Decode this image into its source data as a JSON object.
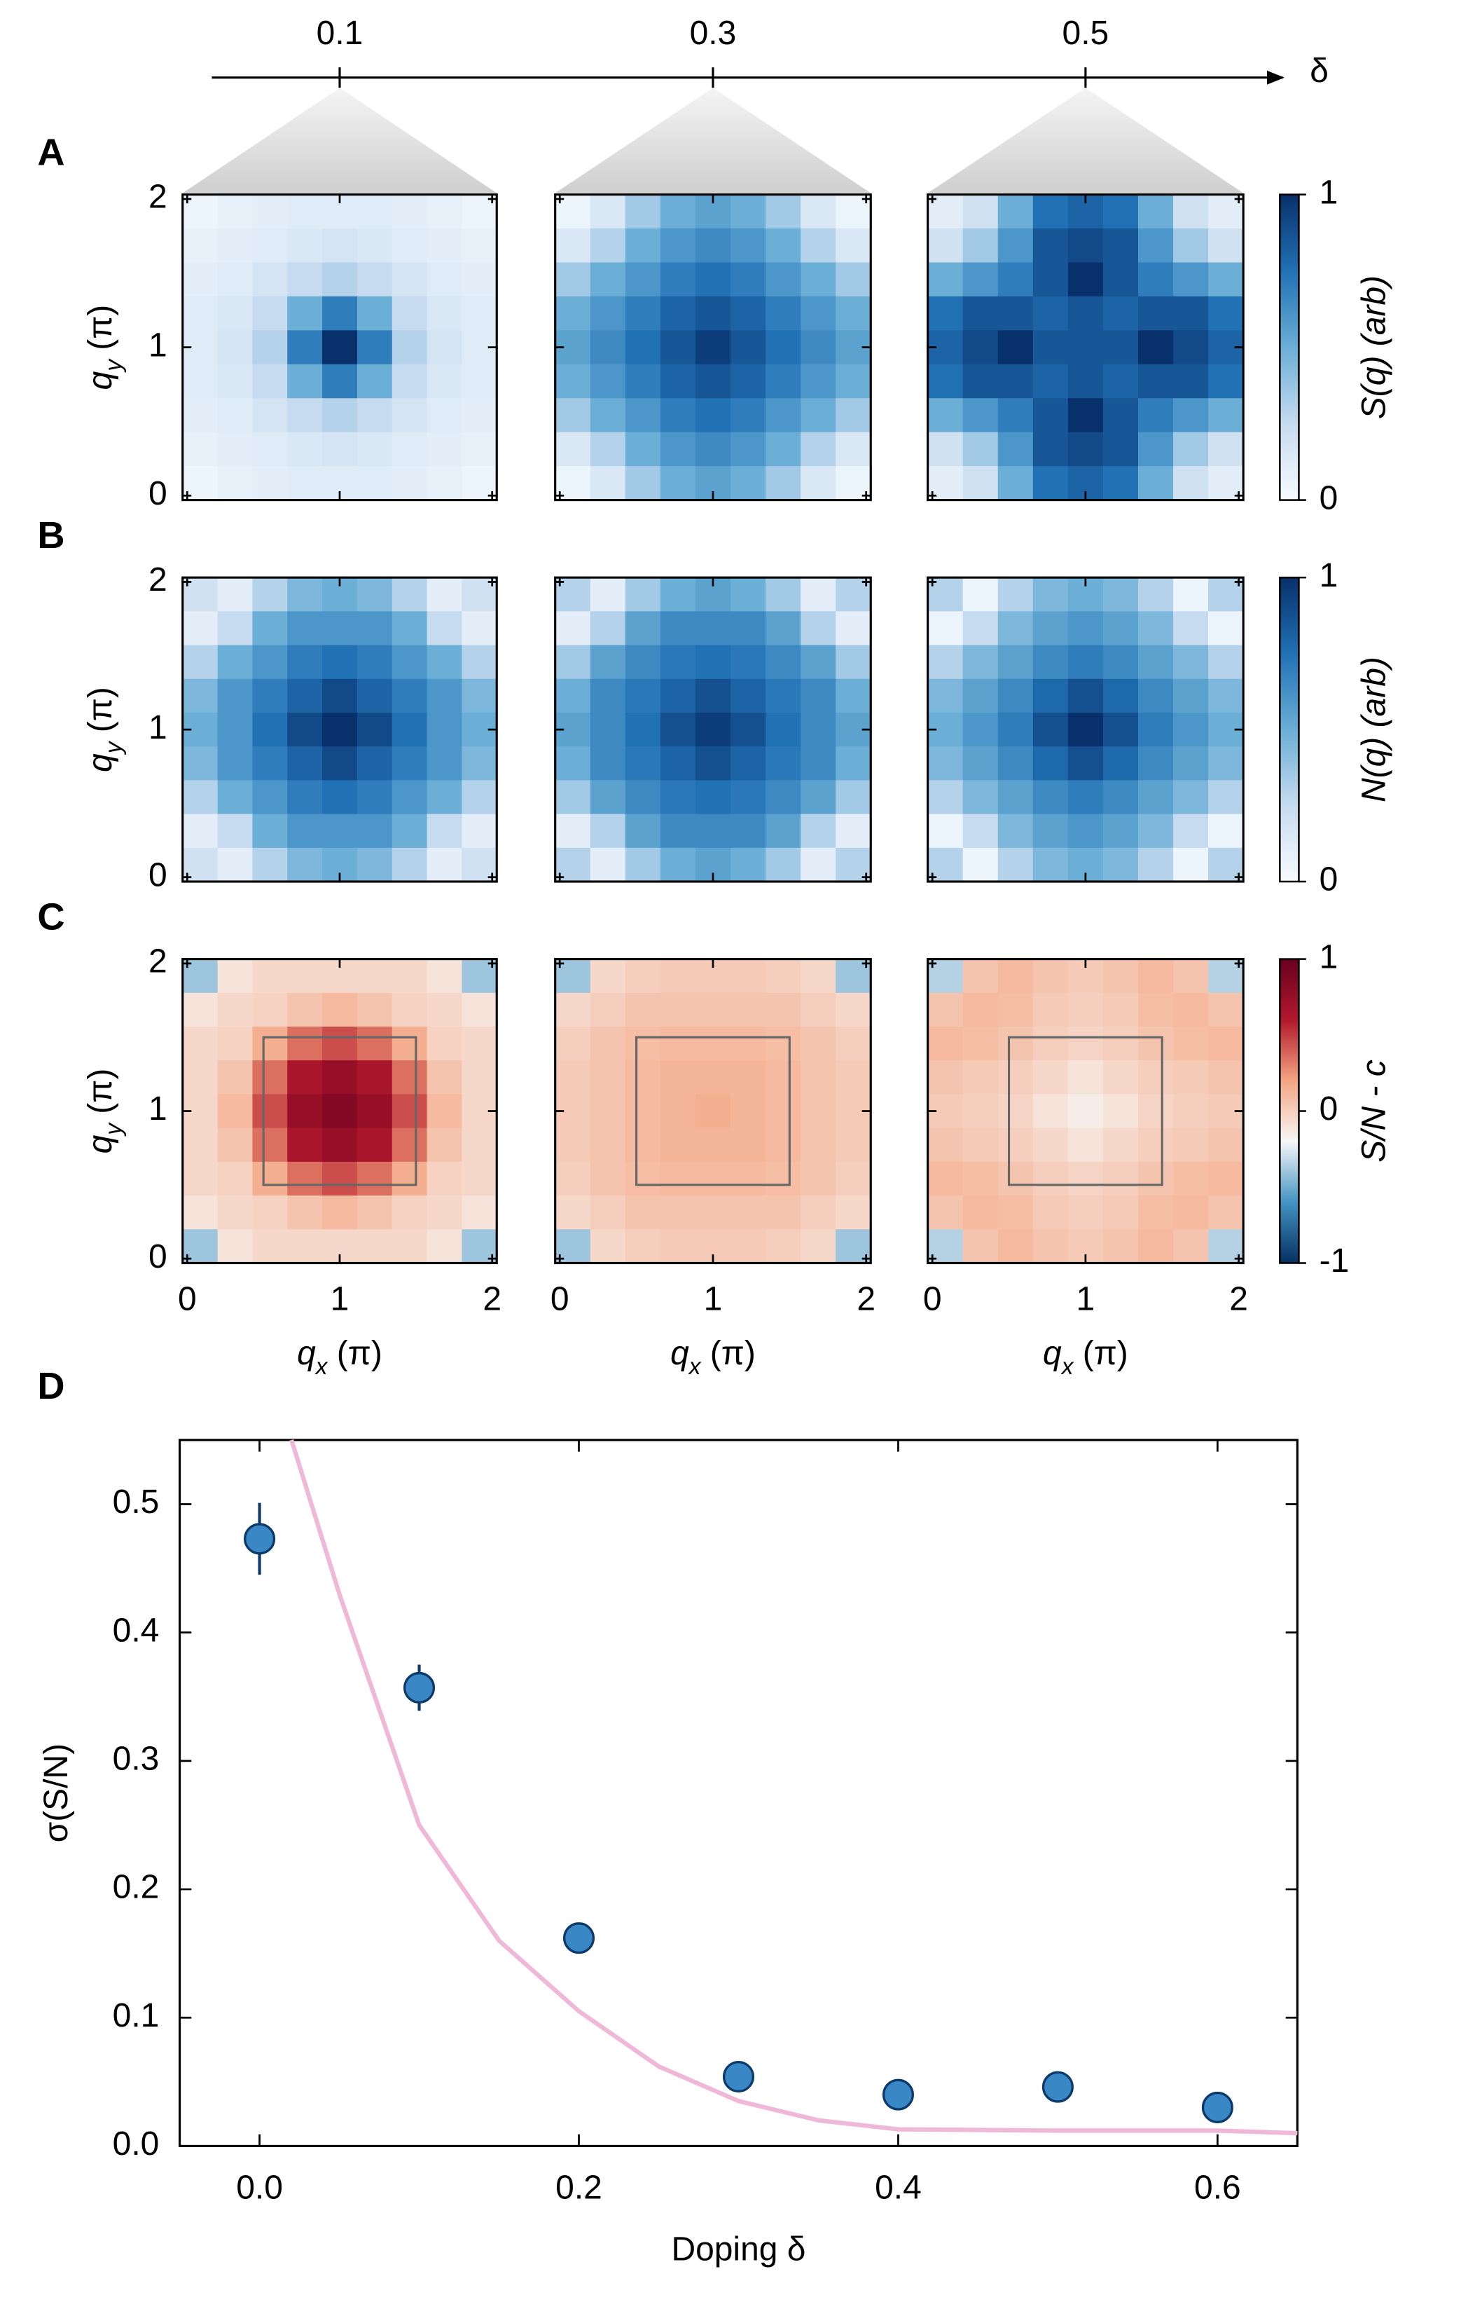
{
  "chart_data": [
    {
      "type": "heatmap",
      "label": "A",
      "doping": [
        0.1,
        0.3,
        0.5
      ],
      "doping_label": "δ",
      "ylabel": [
        "q",
        "y",
        " (π)"
      ],
      "xlim": [
        -0.03,
        2.03
      ],
      "ylim": [
        -0.03,
        2.03
      ],
      "xticks": [
        0,
        1,
        2
      ],
      "yticks": [
        0,
        1,
        2
      ],
      "clim": [
        0,
        1
      ],
      "cticks": [
        0,
        1
      ],
      "colorbar_label": "S(q) (arb)",
      "colormap": [
        "#f7fbff",
        "#c6dbef",
        "#6baed6",
        "#2171b5",
        "#08306b"
      ],
      "maps": [
        [
          [
            0.05,
            0.08,
            0.1,
            0.12,
            0.12,
            0.12,
            0.1,
            0.08,
            0.05
          ],
          [
            0.08,
            0.1,
            0.12,
            0.15,
            0.18,
            0.15,
            0.12,
            0.1,
            0.08
          ],
          [
            0.1,
            0.12,
            0.18,
            0.25,
            0.3,
            0.25,
            0.18,
            0.12,
            0.1
          ],
          [
            0.12,
            0.15,
            0.25,
            0.5,
            0.7,
            0.5,
            0.25,
            0.15,
            0.12
          ],
          [
            0.12,
            0.18,
            0.3,
            0.7,
            1,
            0.7,
            0.3,
            0.18,
            0.12
          ],
          [
            0.12,
            0.15,
            0.25,
            0.5,
            0.7,
            0.5,
            0.25,
            0.15,
            0.12
          ],
          [
            0.1,
            0.12,
            0.18,
            0.25,
            0.3,
            0.25,
            0.18,
            0.12,
            0.1
          ],
          [
            0.08,
            0.1,
            0.12,
            0.15,
            0.18,
            0.15,
            0.12,
            0.1,
            0.08
          ],
          [
            0.05,
            0.08,
            0.1,
            0.12,
            0.12,
            0.12,
            0.1,
            0.08,
            0.05
          ]
        ],
        [
          [
            0.05,
            0.15,
            0.35,
            0.5,
            0.55,
            0.5,
            0.35,
            0.15,
            0.05
          ],
          [
            0.15,
            0.3,
            0.5,
            0.6,
            0.65,
            0.6,
            0.5,
            0.3,
            0.15
          ],
          [
            0.35,
            0.5,
            0.6,
            0.7,
            0.75,
            0.7,
            0.6,
            0.5,
            0.35
          ],
          [
            0.5,
            0.6,
            0.7,
            0.8,
            0.85,
            0.8,
            0.7,
            0.6,
            0.5
          ],
          [
            0.55,
            0.65,
            0.75,
            0.85,
            0.95,
            0.85,
            0.75,
            0.65,
            0.55
          ],
          [
            0.5,
            0.6,
            0.7,
            0.8,
            0.85,
            0.8,
            0.7,
            0.6,
            0.5
          ],
          [
            0.35,
            0.5,
            0.6,
            0.7,
            0.75,
            0.7,
            0.6,
            0.5,
            0.35
          ],
          [
            0.15,
            0.3,
            0.5,
            0.6,
            0.65,
            0.6,
            0.5,
            0.3,
            0.15
          ],
          [
            0.05,
            0.15,
            0.35,
            0.5,
            0.55,
            0.5,
            0.35,
            0.15,
            0.05
          ]
        ],
        [
          [
            0.1,
            0.2,
            0.5,
            0.75,
            0.8,
            0.75,
            0.5,
            0.2,
            0.1
          ],
          [
            0.2,
            0.35,
            0.6,
            0.85,
            0.9,
            0.85,
            0.6,
            0.35,
            0.2
          ],
          [
            0.5,
            0.6,
            0.7,
            0.85,
            1,
            0.85,
            0.7,
            0.6,
            0.5
          ],
          [
            0.75,
            0.85,
            0.85,
            0.8,
            0.85,
            0.8,
            0.85,
            0.85,
            0.75
          ],
          [
            0.8,
            0.9,
            1,
            0.85,
            0.85,
            0.85,
            1,
            0.9,
            0.8
          ],
          [
            0.75,
            0.85,
            0.85,
            0.8,
            0.85,
            0.8,
            0.85,
            0.85,
            0.75
          ],
          [
            0.5,
            0.6,
            0.7,
            0.85,
            1,
            0.85,
            0.7,
            0.6,
            0.5
          ],
          [
            0.2,
            0.35,
            0.6,
            0.85,
            0.9,
            0.85,
            0.6,
            0.35,
            0.2
          ],
          [
            0.1,
            0.2,
            0.5,
            0.75,
            0.8,
            0.75,
            0.5,
            0.2,
            0.1
          ]
        ]
      ]
    },
    {
      "type": "heatmap",
      "label": "B",
      "ylabel": [
        "q",
        "y",
        " (π)"
      ],
      "xlim": [
        -0.03,
        2.03
      ],
      "ylim": [
        -0.03,
        2.03
      ],
      "xticks": [
        0,
        1,
        2
      ],
      "yticks": [
        0,
        1,
        2
      ],
      "clim": [
        0,
        1
      ],
      "cticks": [
        0,
        1
      ],
      "colorbar_label": "N(q) (arb)",
      "colormap": [
        "#f7fbff",
        "#c6dbef",
        "#6baed6",
        "#2171b5",
        "#08306b"
      ],
      "maps": [
        [
          [
            0.2,
            0.1,
            0.3,
            0.45,
            0.5,
            0.45,
            0.3,
            0.1,
            0.2
          ],
          [
            0.1,
            0.25,
            0.5,
            0.6,
            0.6,
            0.6,
            0.5,
            0.25,
            0.1
          ],
          [
            0.3,
            0.5,
            0.6,
            0.7,
            0.75,
            0.7,
            0.6,
            0.5,
            0.3
          ],
          [
            0.45,
            0.6,
            0.7,
            0.8,
            0.9,
            0.8,
            0.7,
            0.6,
            0.45
          ],
          [
            0.5,
            0.6,
            0.75,
            0.9,
            1,
            0.9,
            0.75,
            0.6,
            0.5
          ],
          [
            0.45,
            0.6,
            0.7,
            0.8,
            0.9,
            0.8,
            0.7,
            0.6,
            0.45
          ],
          [
            0.3,
            0.5,
            0.6,
            0.7,
            0.75,
            0.7,
            0.6,
            0.5,
            0.3
          ],
          [
            0.1,
            0.25,
            0.5,
            0.6,
            0.6,
            0.6,
            0.5,
            0.25,
            0.1
          ],
          [
            0.2,
            0.1,
            0.3,
            0.45,
            0.5,
            0.45,
            0.3,
            0.1,
            0.2
          ]
        ],
        [
          [
            0.3,
            0.1,
            0.35,
            0.5,
            0.55,
            0.5,
            0.35,
            0.1,
            0.3
          ],
          [
            0.1,
            0.3,
            0.55,
            0.65,
            0.65,
            0.65,
            0.55,
            0.3,
            0.1
          ],
          [
            0.35,
            0.55,
            0.65,
            0.72,
            0.75,
            0.72,
            0.65,
            0.55,
            0.35
          ],
          [
            0.5,
            0.65,
            0.72,
            0.8,
            0.88,
            0.8,
            0.72,
            0.65,
            0.5
          ],
          [
            0.55,
            0.65,
            0.75,
            0.88,
            0.95,
            0.88,
            0.75,
            0.65,
            0.55
          ],
          [
            0.5,
            0.65,
            0.72,
            0.8,
            0.88,
            0.8,
            0.72,
            0.65,
            0.5
          ],
          [
            0.35,
            0.55,
            0.65,
            0.72,
            0.75,
            0.72,
            0.65,
            0.55,
            0.35
          ],
          [
            0.1,
            0.3,
            0.55,
            0.65,
            0.65,
            0.65,
            0.55,
            0.3,
            0.1
          ],
          [
            0.3,
            0.1,
            0.35,
            0.5,
            0.55,
            0.5,
            0.35,
            0.1,
            0.3
          ]
        ],
        [
          [
            0.3,
            0.05,
            0.3,
            0.45,
            0.5,
            0.45,
            0.3,
            0.05,
            0.3
          ],
          [
            0.05,
            0.25,
            0.45,
            0.55,
            0.6,
            0.55,
            0.45,
            0.25,
            0.05
          ],
          [
            0.3,
            0.45,
            0.55,
            0.65,
            0.7,
            0.65,
            0.55,
            0.45,
            0.3
          ],
          [
            0.45,
            0.55,
            0.65,
            0.78,
            0.88,
            0.78,
            0.65,
            0.55,
            0.45
          ],
          [
            0.5,
            0.6,
            0.7,
            0.88,
            1,
            0.88,
            0.7,
            0.6,
            0.5
          ],
          [
            0.45,
            0.55,
            0.65,
            0.78,
            0.88,
            0.78,
            0.65,
            0.55,
            0.45
          ],
          [
            0.3,
            0.45,
            0.55,
            0.65,
            0.7,
            0.65,
            0.55,
            0.45,
            0.3
          ],
          [
            0.05,
            0.25,
            0.45,
            0.55,
            0.6,
            0.55,
            0.45,
            0.25,
            0.05
          ],
          [
            0.3,
            0.05,
            0.3,
            0.45,
            0.5,
            0.45,
            0.3,
            0.05,
            0.3
          ]
        ]
      ]
    },
    {
      "type": "heatmap",
      "label": "C",
      "ylabel": [
        "q",
        "y",
        " (π)"
      ],
      "xlabel": [
        "q",
        "x",
        " (π)"
      ],
      "xlim": [
        -0.03,
        2.03
      ],
      "ylim": [
        -0.03,
        2.03
      ],
      "xticks": [
        0,
        1,
        2
      ],
      "yticks": [
        0,
        1,
        2
      ],
      "clim": [
        -1,
        1
      ],
      "cticks": [
        -1,
        0,
        1
      ],
      "colorbar_label": "S/N - c",
      "colormap": [
        "#053061",
        "#4393c3",
        "#f7f7f7",
        "#f4a582",
        "#b2182b",
        "#67001f"
      ],
      "box": [
        0.5,
        1.5
      ],
      "maps": [
        [
          [
            -0.4,
            -0.1,
            -0.05,
            -0.05,
            -0.05,
            -0.05,
            -0.05,
            -0.1,
            -0.4
          ],
          [
            -0.1,
            -0.05,
            -0.02,
            0.05,
            0.1,
            0.05,
            -0.02,
            -0.05,
            -0.1
          ],
          [
            -0.05,
            -0.02,
            0.15,
            0.35,
            0.45,
            0.35,
            0.15,
            -0.02,
            -0.05
          ],
          [
            -0.05,
            0.05,
            0.35,
            0.65,
            0.75,
            0.65,
            0.35,
            0.05,
            -0.05
          ],
          [
            -0.05,
            0.1,
            0.45,
            0.75,
            0.85,
            0.75,
            0.45,
            0.1,
            -0.05
          ],
          [
            -0.05,
            0.05,
            0.35,
            0.65,
            0.75,
            0.65,
            0.35,
            0.05,
            -0.05
          ],
          [
            -0.05,
            -0.02,
            0.15,
            0.35,
            0.45,
            0.35,
            0.15,
            -0.02,
            -0.05
          ],
          [
            -0.1,
            -0.05,
            -0.02,
            0.05,
            0.1,
            0.05,
            -0.02,
            -0.05,
            -0.1
          ],
          [
            -0.4,
            -0.1,
            -0.05,
            -0.05,
            -0.05,
            -0.05,
            -0.05,
            -0.1,
            -0.4
          ]
        ],
        [
          [
            -0.4,
            -0.05,
            0,
            0.02,
            0.02,
            0.02,
            0,
            -0.05,
            -0.4
          ],
          [
            -0.05,
            0,
            0.05,
            0.05,
            0.05,
            0.05,
            0.05,
            0,
            -0.05
          ],
          [
            0,
            0.05,
            0.08,
            0.1,
            0.1,
            0.1,
            0.08,
            0.05,
            0
          ],
          [
            0.02,
            0.05,
            0.1,
            0.12,
            0.12,
            0.12,
            0.1,
            0.05,
            0.02
          ],
          [
            0.02,
            0.05,
            0.1,
            0.12,
            0.15,
            0.12,
            0.1,
            0.05,
            0.02
          ],
          [
            0.02,
            0.05,
            0.1,
            0.12,
            0.12,
            0.12,
            0.1,
            0.05,
            0.02
          ],
          [
            0,
            0.05,
            0.08,
            0.1,
            0.1,
            0.1,
            0.08,
            0.05,
            0
          ],
          [
            -0.05,
            0,
            0.05,
            0.05,
            0.05,
            0.05,
            0.05,
            0,
            -0.05
          ],
          [
            -0.4,
            -0.05,
            0,
            0.02,
            0.02,
            0.02,
            0,
            -0.05,
            -0.4
          ]
        ],
        [
          [
            -0.35,
            0.05,
            0.1,
            0.05,
            0.02,
            0.05,
            0.1,
            0.05,
            -0.35
          ],
          [
            0.05,
            0.1,
            0.08,
            0.02,
            0,
            0.02,
            0.08,
            0.1,
            0.05
          ],
          [
            0.1,
            0.08,
            0.05,
            0,
            -0.03,
            0,
            0.05,
            0.08,
            0.1
          ],
          [
            0.05,
            0.02,
            0,
            -0.05,
            -0.1,
            -0.05,
            0,
            0.02,
            0.05
          ],
          [
            0.02,
            0,
            -0.03,
            -0.1,
            -0.15,
            -0.1,
            -0.03,
            0,
            0.02
          ],
          [
            0.05,
            0.02,
            0,
            -0.05,
            -0.1,
            -0.05,
            0,
            0.02,
            0.05
          ],
          [
            0.1,
            0.08,
            0.05,
            0,
            -0.03,
            0,
            0.05,
            0.08,
            0.1
          ],
          [
            0.05,
            0.1,
            0.08,
            0.02,
            0,
            0.02,
            0.08,
            0.1,
            0.05
          ],
          [
            -0.35,
            0.05,
            0.1,
            0.05,
            0.02,
            0.05,
            0.1,
            0.05,
            -0.35
          ]
        ]
      ]
    },
    {
      "type": "scatter",
      "label": "D",
      "xlabel": "Doping δ",
      "ylabel": "σ(S/N)",
      "xlim": [
        -0.05,
        0.65
      ],
      "ylim": [
        0,
        0.55
      ],
      "xticks": [
        {
          "value": 0,
          "label": "0.0"
        },
        {
          "value": 0.2,
          "label": "0.2"
        },
        {
          "value": 0.4,
          "label": "0.4"
        },
        {
          "value": 0.6,
          "label": "0.6"
        }
      ],
      "yticks": [
        {
          "value": 0,
          "label": "0.0"
        },
        {
          "value": 0.1,
          "label": "0.1"
        },
        {
          "value": 0.2,
          "label": "0.2"
        },
        {
          "value": 0.3,
          "label": "0.3"
        },
        {
          "value": 0.4,
          "label": "0.4"
        },
        {
          "value": 0.5,
          "label": "0.5"
        }
      ],
      "series": [
        {
          "color": "#3a87c5",
          "edge": "#0d3a6b",
          "x": [
            0,
            0.1,
            0.2,
            0.3,
            0.4,
            0.5,
            0.6
          ],
          "values": [
            0.473,
            0.357,
            0.162,
            0.054,
            0.04,
            0.046,
            0.03
          ],
          "errors": [
            0.028,
            0.018,
            0.008,
            0.004,
            0.004,
            0.004,
            0.004
          ]
        }
      ],
      "curve": {
        "color": "#f0b8d8",
        "x": [
          0.02,
          0.05,
          0.1,
          0.15,
          0.2,
          0.25,
          0.3,
          0.35,
          0.4,
          0.5,
          0.6,
          0.65
        ],
        "values": [
          0.55,
          0.43,
          0.25,
          0.16,
          0.105,
          0.062,
          0.035,
          0.02,
          0.013,
          0.012,
          0.012,
          0.01
        ]
      }
    }
  ]
}
